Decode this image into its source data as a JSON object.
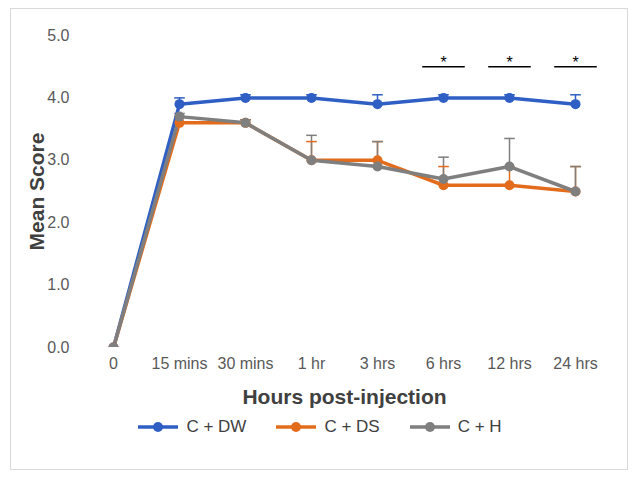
{
  "chart_data": {
    "type": "line",
    "x_label": "Hours post-injection",
    "y_label": "Mean Score",
    "categories": [
      "0",
      "15 mins",
      "30 mins",
      "1 hr",
      "3 hrs",
      "6 hrs",
      "12 hrs",
      "24 hrs"
    ],
    "ylim": [
      0,
      5
    ],
    "yticks": [
      0,
      1,
      2,
      3,
      4,
      5
    ],
    "grid": false,
    "legend": "bottom",
    "marker": "circle",
    "series": [
      {
        "name": "C + DW",
        "color": "#2f5fc4",
        "values": [
          0,
          3.9,
          4.0,
          4.0,
          3.9,
          4.0,
          4.0,
          3.9
        ],
        "errors": [
          0,
          0.1,
          0.05,
          0.05,
          0.15,
          0.05,
          0.05,
          0.15
        ]
      },
      {
        "name": "C + DS",
        "color": "#e36c1c",
        "values": [
          0,
          3.6,
          3.6,
          3.0,
          3.0,
          2.6,
          2.6,
          2.5
        ],
        "errors": [
          0,
          0.1,
          0.05,
          0.3,
          0.3,
          0.3,
          0.3,
          0.4
        ]
      },
      {
        "name": "C + H",
        "color": "#7f7f7f",
        "values": [
          0,
          3.7,
          3.6,
          3.0,
          2.9,
          2.7,
          2.9,
          2.5
        ],
        "errors": [
          0,
          0.05,
          0.05,
          0.4,
          0.4,
          0.35,
          0.45,
          0.4
        ]
      }
    ],
    "annotations": [
      {
        "category": "6 hrs",
        "label": "*",
        "y": 4.5
      },
      {
        "category": "12 hrs",
        "label": "*",
        "y": 4.5
      },
      {
        "category": "24 hrs",
        "label": "*",
        "y": 4.5
      }
    ]
  }
}
